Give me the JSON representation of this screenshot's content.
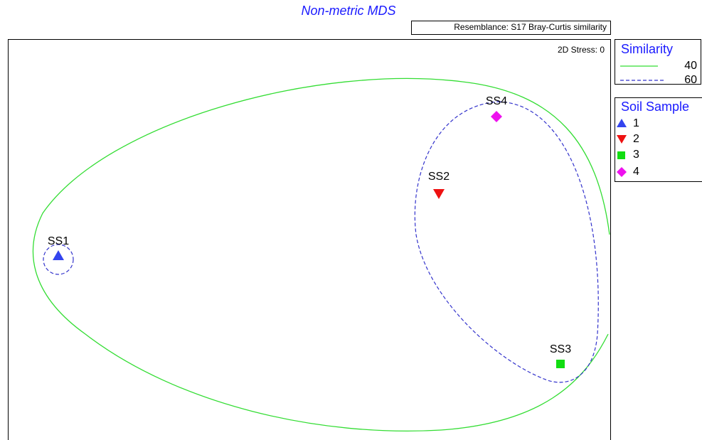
{
  "title": "Non-metric MDS",
  "resemblance": "Resemblance: S17 Bray-Curtis similarity",
  "stress": "2D Stress: 0",
  "similarity_legend": {
    "title": "Similarity",
    "entries": [
      40,
      60
    ]
  },
  "sample_legend": {
    "title": "Soil Sample",
    "entries": [
      1,
      2,
      3,
      4
    ]
  },
  "points": [
    {
      "label": "SS1"
    },
    {
      "label": "SS2"
    },
    {
      "label": "SS3"
    },
    {
      "label": "SS4"
    }
  ]
}
